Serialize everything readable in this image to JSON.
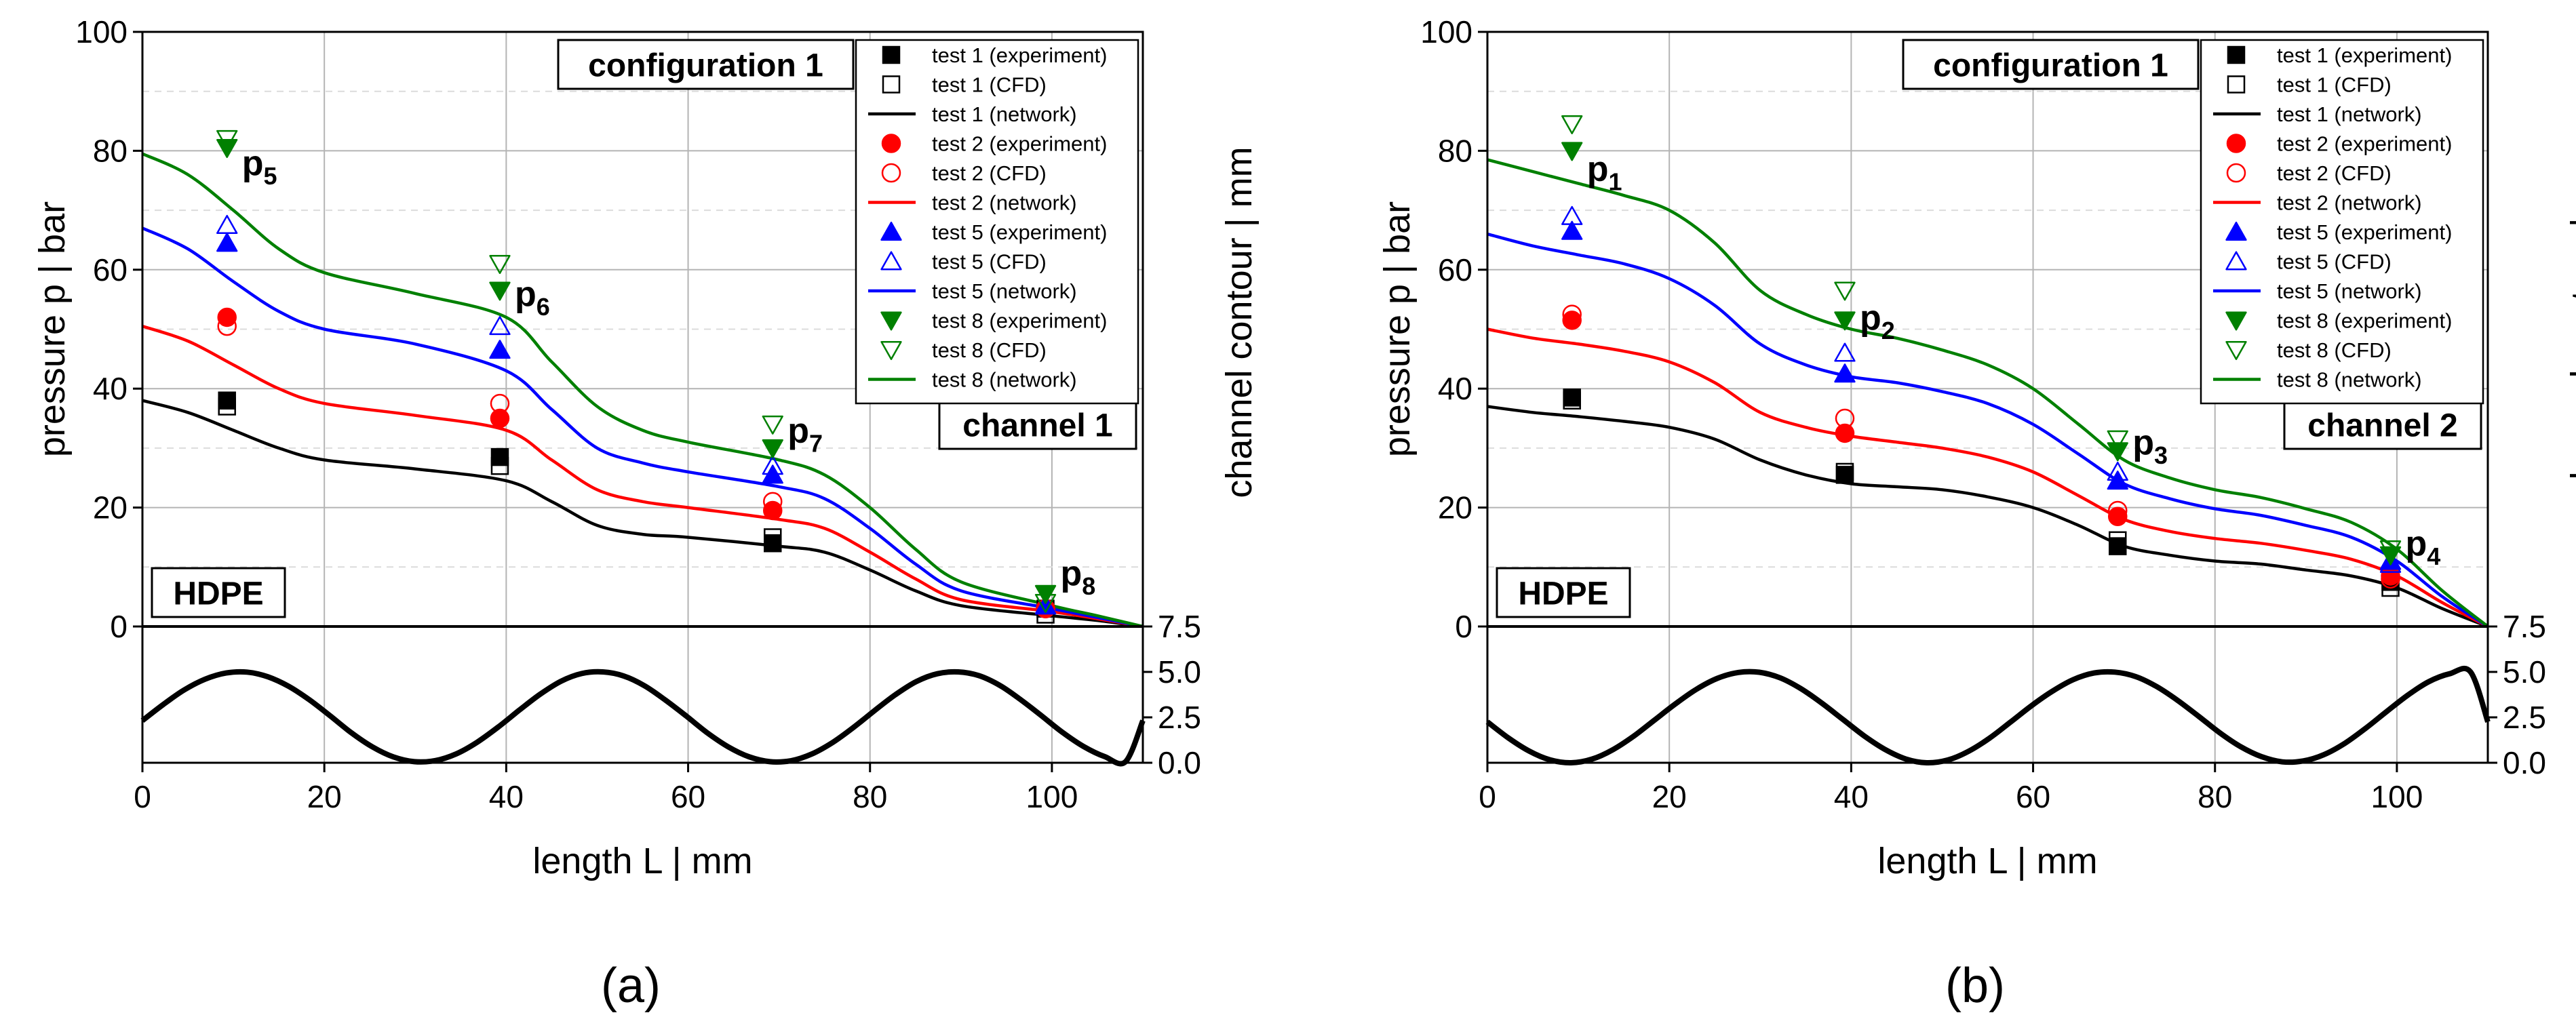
{
  "colors": {
    "test1": "#000000",
    "test2": "#ff0000",
    "test5": "#0000ff",
    "test8": "#008000",
    "grid": "#b4b4b4"
  },
  "chart_data": [
    {
      "panel": "(a)",
      "type": "line",
      "configuration": "configuration 1",
      "channel": "channel 1",
      "material": "HDPE",
      "xlabel": "length L  |  mm",
      "ylabel": "pressure p  |  bar",
      "ylabel_right": "channel contour  |  mm",
      "xlim": [
        0,
        110
      ],
      "ylim": [
        0,
        100
      ],
      "xticks": [
        0,
        20,
        40,
        60,
        80,
        100
      ],
      "yticks": [
        0,
        20,
        40,
        60,
        80,
        100
      ],
      "contour_ylim": [
        0,
        7.5
      ],
      "contour_ticks": [
        "7.5",
        "5.0",
        "2.5",
        "0.0"
      ],
      "grid": true,
      "legend_position": "top-right",
      "series": [
        {
          "name": "test 1 (experiment)",
          "kind": "marker",
          "marker": "square-filled",
          "color": "#000000",
          "x": [
            9.3,
            39.3,
            69.3,
            99.3
          ],
          "y": [
            38,
            28.5,
            14,
            3
          ]
        },
        {
          "name": "test 1 (CFD)",
          "kind": "marker",
          "marker": "square-open",
          "color": "#000000",
          "x": [
            9.3,
            39.3,
            69.3,
            99.3
          ],
          "y": [
            37,
            27,
            15,
            2
          ]
        },
        {
          "name": "test 1 (network)",
          "kind": "line",
          "color": "#000000",
          "x": [
            0,
            5,
            10,
            15,
            20,
            30,
            40,
            45,
            50,
            55,
            60,
            70,
            75,
            80,
            85,
            90,
            100,
            105,
            110
          ],
          "y": [
            38,
            36,
            33,
            30,
            28,
            26.5,
            24.5,
            21,
            17,
            15.5,
            15,
            13.5,
            12.5,
            9.5,
            6,
            3.5,
            1.8,
            1,
            0
          ]
        },
        {
          "name": "test 2 (experiment)",
          "kind": "marker",
          "marker": "circle-filled",
          "color": "#ff0000",
          "x": [
            9.3,
            39.3,
            69.3,
            99.3
          ],
          "y": [
            52,
            35,
            19.5,
            3
          ]
        },
        {
          "name": "test 2 (CFD)",
          "kind": "marker",
          "marker": "circle-open",
          "color": "#ff0000",
          "x": [
            9.3,
            39.3,
            69.3,
            99.3
          ],
          "y": [
            50.5,
            37.5,
            21,
            3
          ]
        },
        {
          "name": "test 2 (network)",
          "kind": "line",
          "color": "#ff0000",
          "x": [
            0,
            5,
            10,
            15,
            20,
            30,
            40,
            45,
            50,
            55,
            60,
            70,
            75,
            80,
            85,
            90,
            100,
            105,
            110
          ],
          "y": [
            50.5,
            48,
            44,
            40,
            37.5,
            35.5,
            33,
            28,
            23,
            21,
            20,
            18,
            16.5,
            12.5,
            8,
            4.5,
            2.5,
            1.3,
            0
          ]
        },
        {
          "name": "test 5 (experiment)",
          "kind": "marker",
          "marker": "triangle-up-filled",
          "color": "#0000ff",
          "x": [
            9.3,
            39.3,
            69.3,
            99.3
          ],
          "y": [
            64.5,
            46.5,
            25.5,
            3.5
          ]
        },
        {
          "name": "test 5 (CFD)",
          "kind": "marker",
          "marker": "triangle-up-open",
          "color": "#0000ff",
          "x": [
            9.3,
            39.3,
            69.3,
            99.3
          ],
          "y": [
            67.5,
            50.5,
            27,
            3.5
          ]
        },
        {
          "name": "test 5 (network)",
          "kind": "line",
          "color": "#0000ff",
          "x": [
            0,
            5,
            10,
            15,
            20,
            30,
            40,
            45,
            50,
            55,
            60,
            70,
            75,
            80,
            85,
            90,
            100,
            105,
            110
          ],
          "y": [
            67,
            63.5,
            58,
            53,
            50,
            47.5,
            43,
            36.5,
            30,
            27.5,
            26,
            23.5,
            21.5,
            16.5,
            10.5,
            6,
            3,
            1.5,
            0
          ]
        },
        {
          "name": "test 8 (experiment)",
          "kind": "marker",
          "marker": "triangle-down-filled",
          "color": "#008000",
          "x": [
            9.3,
            39.3,
            69.3,
            99.3
          ],
          "y": [
            80.5,
            56.5,
            30,
            5.5
          ]
        },
        {
          "name": "test 8 (CFD)",
          "kind": "marker",
          "marker": "triangle-down-open",
          "color": "#008000",
          "x": [
            9.3,
            39.3,
            69.3,
            99.3
          ],
          "y": [
            82,
            61,
            34,
            4
          ]
        },
        {
          "name": "test 8 (network)",
          "kind": "line",
          "color": "#008000",
          "x": [
            0,
            5,
            10,
            15,
            20,
            30,
            40,
            45,
            50,
            55,
            60,
            70,
            75,
            80,
            85,
            90,
            100,
            105,
            110
          ],
          "y": [
            79.5,
            76,
            70,
            63.5,
            59.5,
            56,
            52,
            44.5,
            37,
            33,
            31,
            28,
            25.5,
            20,
            13,
            7.5,
            3.5,
            1.8,
            0
          ]
        }
      ],
      "contour": {
        "x": [
          0,
          2.3,
          4.6,
          6.9,
          9.2,
          11.5,
          13.8,
          16.1,
          18.4,
          20.7,
          23,
          25.3,
          27.6,
          29.9,
          32.2,
          34.5,
          36.8,
          39.1,
          41.4,
          43.7,
          46,
          48.3,
          50.6,
          52.9,
          55.2,
          57.5,
          59.8,
          62.1,
          64.4,
          66.7,
          69,
          71.3,
          73.6,
          75.9,
          78.2,
          80.5,
          82.8,
          85.1,
          87.4,
          89.7,
          92,
          94.3,
          96.6,
          98.9,
          101.2,
          103.5,
          105.8,
          108.1,
          110
        ],
        "y": [
          2.32,
          3.21,
          4.01,
          4.6,
          4.94,
          4.99,
          4.73,
          4.2,
          3.45,
          2.56,
          1.64,
          0.87,
          0.32,
          0.06,
          0.12,
          0.49,
          1.13,
          1.96,
          2.88,
          3.76,
          4.48,
          4.91,
          5,
          4.78,
          4.24,
          3.45,
          2.57,
          1.65,
          0.88,
          0.33,
          0.06,
          0.11,
          0.48,
          1.12,
          1.95,
          2.87,
          3.75,
          4.47,
          4.9,
          5,
          4.79,
          4.25,
          3.46,
          2.57,
          1.66,
          0.89,
          0.34,
          0.06,
          2.32
        ]
      },
      "annotations": [
        {
          "text": "p",
          "sub": "5",
          "x": 9.3,
          "y": 78
        },
        {
          "text": "p",
          "sub": "6",
          "x": 39.3,
          "y": 56
        },
        {
          "text": "p",
          "sub": "7",
          "x": 69.3,
          "y": 33
        },
        {
          "text": "p",
          "sub": "8",
          "x": 99.3,
          "y": 9
        }
      ]
    },
    {
      "panel": "(b)",
      "type": "line",
      "configuration": "configuration 1",
      "channel": "channel 2",
      "material": "HDPE",
      "xlabel": "length L  |  mm",
      "ylabel": "pressure p  |  bar",
      "ylabel_right": "channel contour  |  mm",
      "xlim": [
        0,
        110
      ],
      "ylim": [
        0,
        100
      ],
      "xticks": [
        0,
        20,
        40,
        60,
        80,
        100
      ],
      "yticks": [
        0,
        20,
        40,
        60,
        80,
        100
      ],
      "contour_ylim": [
        0,
        7.5
      ],
      "contour_ticks": [
        "7.5",
        "5.0",
        "2.5",
        "0.0"
      ],
      "grid": true,
      "legend_position": "top-right",
      "series": [
        {
          "name": "test 1 (experiment)",
          "kind": "marker",
          "marker": "square-filled",
          "color": "#000000",
          "x": [
            9.3,
            39.3,
            69.3,
            99.3
          ],
          "y": [
            38.5,
            25.5,
            13.5,
            7.5
          ]
        },
        {
          "name": "test 1 (CFD)",
          "kind": "marker",
          "marker": "square-open",
          "color": "#000000",
          "x": [
            9.3,
            39.3,
            69.3,
            99.3
          ],
          "y": [
            38,
            26,
            14.5,
            6.5
          ]
        },
        {
          "name": "test 1 (network)",
          "kind": "line",
          "color": "#000000",
          "x": [
            0,
            5,
            10,
            15,
            20,
            25,
            30,
            35,
            40,
            45,
            50,
            55,
            60,
            65,
            70,
            75,
            80,
            85,
            90,
            95,
            100,
            105,
            110
          ],
          "y": [
            37,
            36,
            35.3,
            34.5,
            33.5,
            31.5,
            28,
            25.5,
            24,
            23.5,
            23,
            21.8,
            20,
            17,
            13.5,
            12,
            11,
            10.5,
            9.5,
            8.5,
            6.5,
            3,
            0
          ]
        },
        {
          "name": "test 2 (experiment)",
          "kind": "marker",
          "marker": "circle-filled",
          "color": "#ff0000",
          "x": [
            9.3,
            39.3,
            69.3,
            99.3
          ],
          "y": [
            51.5,
            32.5,
            18.5,
            8.5
          ]
        },
        {
          "name": "test 2 (CFD)",
          "kind": "marker",
          "marker": "circle-open",
          "color": "#ff0000",
          "x": [
            9.3,
            39.3,
            69.3,
            99.3
          ],
          "y": [
            52.5,
            35,
            19.5,
            8
          ]
        },
        {
          "name": "test 2 (network)",
          "kind": "line",
          "color": "#ff0000",
          "x": [
            0,
            5,
            10,
            15,
            20,
            25,
            30,
            35,
            40,
            45,
            50,
            55,
            60,
            65,
            70,
            75,
            80,
            85,
            90,
            95,
            100,
            105,
            110
          ],
          "y": [
            50,
            48.5,
            47.5,
            46.3,
            44.5,
            41,
            36,
            33.5,
            32,
            31,
            30,
            28.5,
            26,
            22,
            18,
            16,
            14.8,
            14,
            12.8,
            11.3,
            8.5,
            4,
            0
          ]
        },
        {
          "name": "test 5 (experiment)",
          "kind": "marker",
          "marker": "triangle-up-filled",
          "color": "#0000ff",
          "x": [
            9.3,
            39.3,
            69.3,
            99.3
          ],
          "y": [
            66.5,
            42.5,
            24.5,
            11
          ]
        },
        {
          "name": "test 5 (CFD)",
          "kind": "marker",
          "marker": "triangle-up-open",
          "color": "#0000ff",
          "x": [
            9.3,
            39.3,
            69.3,
            99.3
          ],
          "y": [
            69,
            46,
            26,
            10.5
          ]
        },
        {
          "name": "test 5 (network)",
          "kind": "line",
          "color": "#0000ff",
          "x": [
            0,
            5,
            10,
            15,
            20,
            25,
            30,
            35,
            40,
            45,
            50,
            55,
            60,
            65,
            70,
            75,
            80,
            85,
            90,
            95,
            100,
            105,
            110
          ],
          "y": [
            66,
            64,
            62.5,
            61,
            58.5,
            54,
            47.5,
            44,
            42,
            41,
            39.5,
            37.5,
            34,
            29,
            24,
            21.5,
            19.8,
            18.7,
            17,
            15,
            11,
            5,
            0
          ]
        },
        {
          "name": "test 8 (experiment)",
          "kind": "marker",
          "marker": "triangle-down-filled",
          "color": "#008000",
          "x": [
            9.3,
            39.3,
            69.3,
            99.3
          ],
          "y": [
            80,
            51.5,
            29.5,
            12
          ]
        },
        {
          "name": "test 8 (CFD)",
          "kind": "marker",
          "marker": "triangle-down-open",
          "color": "#008000",
          "x": [
            9.3,
            39.3,
            69.3,
            99.3
          ],
          "y": [
            84.5,
            56.5,
            31.5,
            13
          ]
        },
        {
          "name": "test 8 (network)",
          "kind": "line",
          "color": "#008000",
          "x": [
            0,
            5,
            10,
            15,
            20,
            25,
            30,
            35,
            40,
            45,
            50,
            55,
            60,
            65,
            70,
            75,
            80,
            85,
            90,
            95,
            100,
            105,
            110
          ],
          "y": [
            78.5,
            76.5,
            74.5,
            72.5,
            70,
            64.5,
            56.5,
            52.5,
            50,
            48.5,
            46.5,
            44,
            40,
            34,
            28,
            25,
            23,
            21.7,
            19.8,
            17.5,
            13,
            6,
            0
          ]
        }
      ],
      "contour": {
        "x": [
          0,
          2.3,
          4.6,
          6.9,
          9.2,
          11.5,
          13.8,
          16.1,
          18.4,
          20.7,
          23,
          25.3,
          27.6,
          29.9,
          32.2,
          34.5,
          36.8,
          39.1,
          41.4,
          43.7,
          46,
          48.3,
          50.6,
          52.9,
          55.2,
          57.5,
          59.8,
          62.1,
          64.4,
          66.7,
          69,
          71.3,
          73.6,
          75.9,
          78.2,
          80.5,
          82.8,
          85.1,
          87.4,
          89.7,
          92,
          94.3,
          96.6,
          98.9,
          101.2,
          103.5,
          105.8,
          108.1,
          110
        ],
        "y": [
          2.25,
          1.37,
          0.64,
          0.16,
          0,
          0.2,
          0.72,
          1.47,
          2.36,
          3.25,
          4.05,
          4.65,
          4.97,
          4.98,
          4.67,
          4.07,
          3.27,
          2.38,
          1.49,
          0.74,
          0.21,
          0,
          0.15,
          0.63,
          1.35,
          2.23,
          3.13,
          3.93,
          4.57,
          4.94,
          4.99,
          4.74,
          4.19,
          3.43,
          2.56,
          1.66,
          0.89,
          0.34,
          0.05,
          0.1,
          0.45,
          1.08,
          1.91,
          2.83,
          3.72,
          4.46,
          4.9,
          5,
          2.25
        ]
      },
      "annotations": [
        {
          "text": "p",
          "sub": "1",
          "x": 9.3,
          "y": 77
        },
        {
          "text": "p",
          "sub": "2",
          "x": 39.3,
          "y": 52
        },
        {
          "text": "p",
          "sub": "3",
          "x": 69.3,
          "y": 31
        },
        {
          "text": "p",
          "sub": "4",
          "x": 99.3,
          "y": 14
        }
      ]
    }
  ]
}
